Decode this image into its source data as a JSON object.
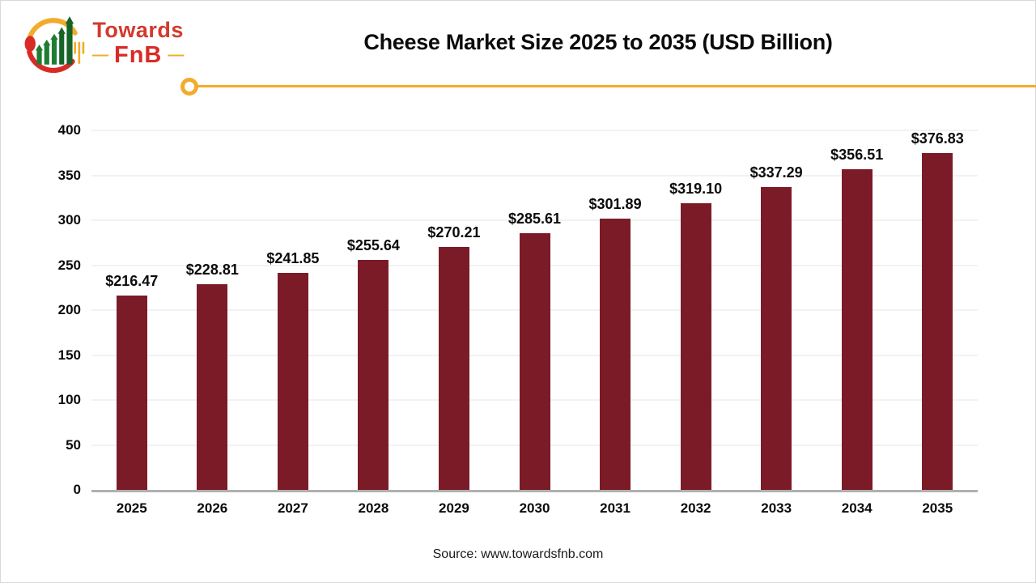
{
  "branding": {
    "logo_line1": "Towards",
    "logo_line2": "FnB",
    "dash": "—",
    "colors": {
      "red": "#d23a2e",
      "bright_red": "#d92b26",
      "yellow": "#f2ac2c",
      "green": "#1f7d33",
      "dark_green": "#166327"
    }
  },
  "header": {
    "title": "Cheese Market Size 2025 to 2035 (USD Billion)"
  },
  "chart_data": {
    "type": "bar",
    "title": "Cheese Market Size 2025 to 2035 (USD Billion)",
    "categories": [
      "2025",
      "2026",
      "2027",
      "2028",
      "2029",
      "2030",
      "2031",
      "2032",
      "2033",
      "2034",
      "2035"
    ],
    "values": [
      216.47,
      228.81,
      241.85,
      255.64,
      270.21,
      285.61,
      301.89,
      319.1,
      337.29,
      356.51,
      376.83
    ],
    "labels": [
      "$216.47",
      "$228.81",
      "$241.85",
      "$255.64",
      "$270.21",
      "$285.61",
      "$301.89",
      "$319.10",
      "$337.29",
      "$356.51",
      "$376.83"
    ],
    "xlabel": "",
    "ylabel": "",
    "ylim": [
      0,
      400
    ],
    "yticks": [
      0,
      50,
      100,
      150,
      200,
      250,
      300,
      350,
      400
    ],
    "grid": true,
    "legend": "none",
    "bar_color": "#7c1b28",
    "gridline_color": "#f2f2f2",
    "axis_color": "#b0b0b0"
  },
  "footer": {
    "source": "Source: www.towardsfnb.com"
  }
}
